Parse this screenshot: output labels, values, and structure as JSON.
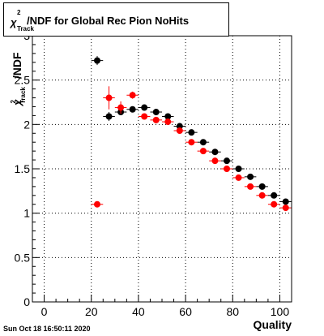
{
  "title": {
    "symbol": "χ",
    "superscript": "2",
    "subscript": "Track",
    "text": "/NDF for Global Rec Pion NoHits"
  },
  "yaxis_label": {
    "symbol": "χ",
    "superscript": "2",
    "subscript": "Track",
    "text": "/NDF"
  },
  "xaxis_label": "Quality",
  "timestamp": "Sun Oct 18 16:50:11 2020",
  "chart_data": {
    "type": "scatter",
    "title": "χ²Track/NDF for Global Rec Pion NoHits",
    "xlabel": "Quality",
    "ylabel": "χ²Track/NDF",
    "xlim": [
      -5,
      105
    ],
    "ylim": [
      0,
      3
    ],
    "grid": true,
    "x_ticks": [
      "0",
      "20",
      "40",
      "60",
      "80",
      "100"
    ],
    "y_ticks": [
      "0",
      "0.5",
      "1",
      "1.5",
      "2",
      "2.5",
      "3"
    ],
    "series": [
      {
        "color": "#000000",
        "points": [
          {
            "x": 22.5,
            "y": 2.72,
            "err": 0.05
          },
          {
            "x": 27.5,
            "y": 2.09,
            "err": 0.05
          },
          {
            "x": 32.5,
            "y": 2.14,
            "err": 0.03
          },
          {
            "x": 37.5,
            "y": 2.17,
            "err": 0.02
          },
          {
            "x": 42.5,
            "y": 2.19,
            "err": 0.02
          },
          {
            "x": 47.5,
            "y": 2.14,
            "err": 0.02
          },
          {
            "x": 52.5,
            "y": 2.09,
            "err": 0.02
          },
          {
            "x": 57.5,
            "y": 1.98,
            "err": 0.02
          },
          {
            "x": 62.5,
            "y": 1.91,
            "err": 0.02
          },
          {
            "x": 67.5,
            "y": 1.8,
            "err": 0.02
          },
          {
            "x": 72.5,
            "y": 1.69,
            "err": 0.02
          },
          {
            "x": 77.5,
            "y": 1.59,
            "err": 0.02
          },
          {
            "x": 82.5,
            "y": 1.5,
            "err": 0.02
          },
          {
            "x": 87.5,
            "y": 1.41,
            "err": 0.02
          },
          {
            "x": 92.5,
            "y": 1.3,
            "err": 0.02
          },
          {
            "x": 97.5,
            "y": 1.2,
            "err": 0.02
          },
          {
            "x": 102.5,
            "y": 1.13,
            "err": 0.02
          }
        ]
      },
      {
        "color": "#ff0000",
        "points": [
          {
            "x": 22.5,
            "y": 1.1,
            "err": 0.02
          },
          {
            "x": 27.5,
            "y": 2.3,
            "err": 0.13
          },
          {
            "x": 32.5,
            "y": 2.19,
            "err": 0.07
          },
          {
            "x": 37.5,
            "y": 2.33,
            "err": 0.04
          },
          {
            "x": 42.5,
            "y": 2.09,
            "err": 0.02
          },
          {
            "x": 47.5,
            "y": 2.05,
            "err": 0.02
          },
          {
            "x": 52.5,
            "y": 2.03,
            "err": 0.02
          },
          {
            "x": 57.5,
            "y": 1.93,
            "err": 0.02
          },
          {
            "x": 62.5,
            "y": 1.8,
            "err": 0.02
          },
          {
            "x": 67.5,
            "y": 1.7,
            "err": 0.02
          },
          {
            "x": 72.5,
            "y": 1.59,
            "err": 0.02
          },
          {
            "x": 77.5,
            "y": 1.5,
            "err": 0.02
          },
          {
            "x": 82.5,
            "y": 1.4,
            "err": 0.02
          },
          {
            "x": 87.5,
            "y": 1.3,
            "err": 0.02
          },
          {
            "x": 92.5,
            "y": 1.2,
            "err": 0.02
          },
          {
            "x": 97.5,
            "y": 1.1,
            "err": 0.02
          },
          {
            "x": 102.5,
            "y": 1.06,
            "err": 0.02
          }
        ]
      }
    ]
  }
}
